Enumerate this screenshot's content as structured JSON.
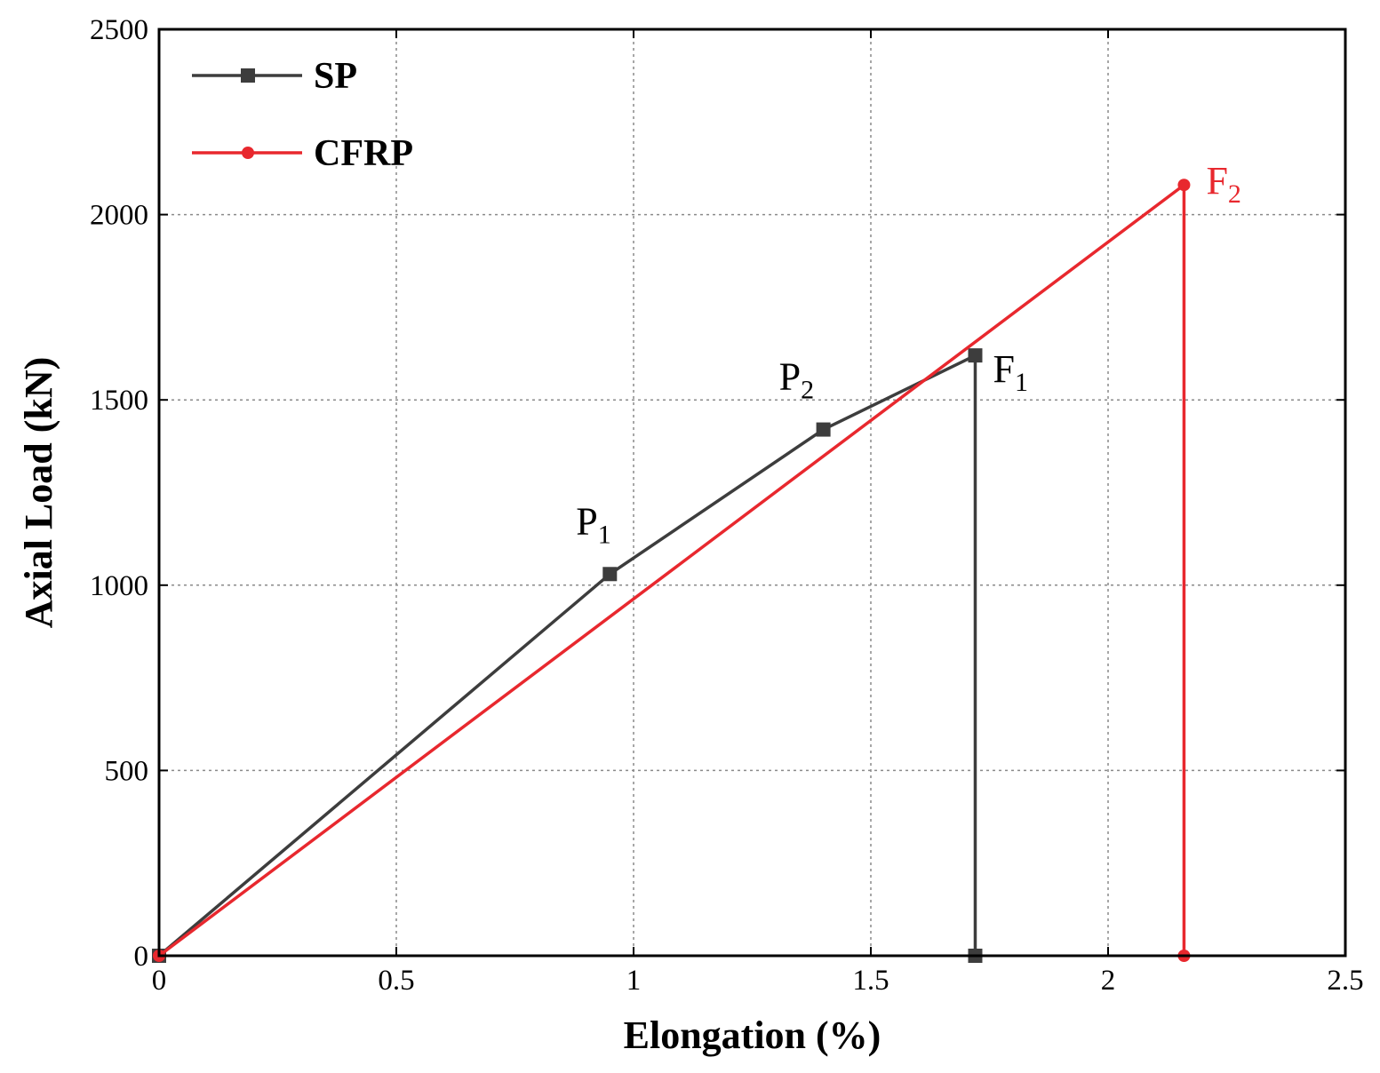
{
  "chart_data": {
    "type": "line",
    "xlabel": "Elongation (%)",
    "ylabel": "Axial Load (kN)",
    "xlim": [
      0,
      2.5
    ],
    "ylim": [
      0,
      2500
    ],
    "xticks": [
      0,
      0.5,
      1,
      1.5,
      2,
      2.5
    ],
    "xtick_labels": [
      "0",
      "0.5",
      "1",
      "1.5",
      "2",
      "2.5"
    ],
    "yticks": [
      0,
      500,
      1000,
      1500,
      2000,
      2500
    ],
    "ytick_labels": [
      "0",
      "500",
      "1000",
      "1500",
      "2000",
      "2500"
    ],
    "grid": true,
    "legend_position": "top-left",
    "series": [
      {
        "name": "SP",
        "color": "#3d3d3d",
        "marker": "square",
        "x": [
          0,
          0.95,
          1.4,
          1.72,
          1.72
        ],
        "y": [
          0,
          1030,
          1420,
          1620,
          0
        ]
      },
      {
        "name": "CFRP",
        "color": "#e8282e",
        "marker": "circle",
        "x": [
          0,
          2.16,
          2.16
        ],
        "y": [
          0,
          2080,
          0
        ]
      }
    ],
    "annotations": [
      {
        "base": "P",
        "sub": "1",
        "x": 0.95,
        "y": 1030,
        "color": "#000000"
      },
      {
        "base": "P",
        "sub": "2",
        "x": 1.4,
        "y": 1420,
        "color": "#000000"
      },
      {
        "base": "F",
        "sub": "1",
        "x": 1.72,
        "y": 1620,
        "color": "#000000"
      },
      {
        "base": "F",
        "sub": "2",
        "x": 2.16,
        "y": 2080,
        "color": "#e8282e"
      }
    ]
  }
}
